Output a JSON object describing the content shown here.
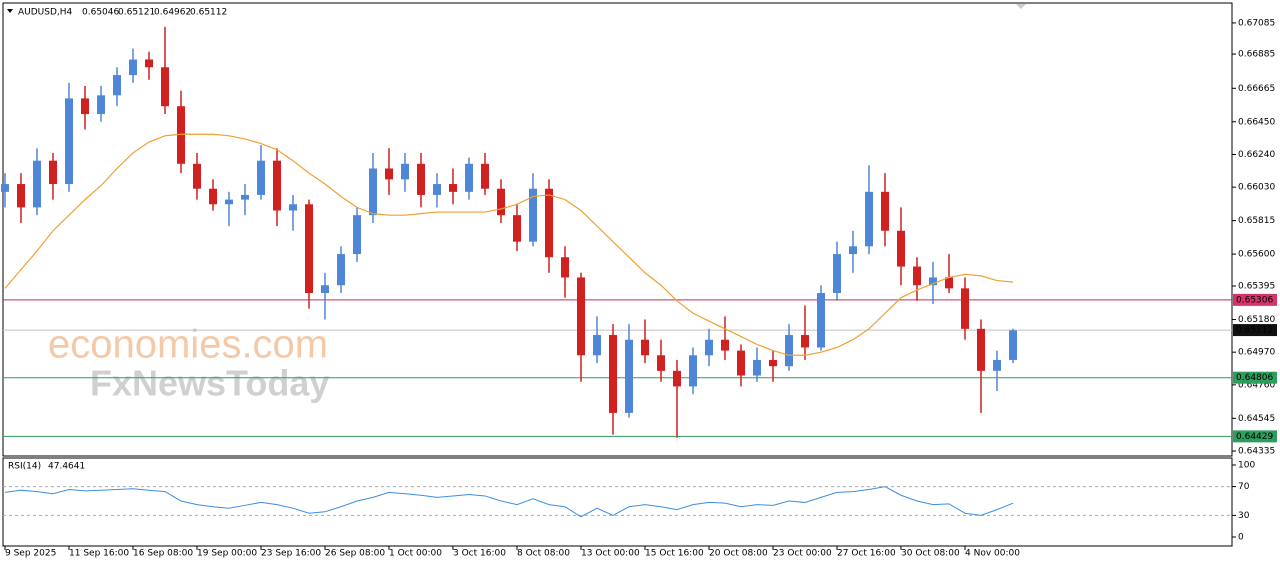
{
  "chart_data": [
    {
      "type": "candlestick",
      "title": "AUDUSD,H4",
      "header_values": [
        0.65046,
        0.65121,
        0.64962,
        0.65112
      ],
      "categories": [
        "9 Sep 2025",
        null,
        null,
        null,
        "11 Sep 16:00",
        null,
        null,
        null,
        "16 Sep 08:00",
        null,
        null,
        null,
        "19 Sep 00:00",
        null,
        null,
        null,
        "23 Sep 16:00",
        null,
        null,
        null,
        "26 Sep 08:00",
        null,
        null,
        null,
        "1 Oct 00:00",
        null,
        null,
        null,
        "3 Oct 16:00",
        null,
        null,
        null,
        "8 Oct 08:00",
        null,
        null,
        null,
        "13 Oct 00:00",
        null,
        null,
        null,
        "15 Oct 16:00",
        null,
        null,
        null,
        "20 Oct 08:00",
        null,
        null,
        null,
        "23 Oct 00:00",
        null,
        null,
        null,
        "27 Oct 16:00",
        null,
        null,
        null,
        "30 Oct 08:00",
        null,
        null,
        null,
        "4 Nov 00:00",
        null,
        null,
        null
      ],
      "open": [
        0.66,
        0.6605,
        0.659,
        0.662,
        0.6605,
        0.666,
        0.665,
        0.6662,
        0.6675,
        0.6685,
        0.668,
        0.6655,
        0.6618,
        0.6602,
        0.6592,
        0.6595,
        0.6598,
        0.662,
        0.6588,
        0.6592,
        0.6535,
        0.654,
        0.656,
        0.6585,
        0.6615,
        0.6608,
        0.6618,
        0.6598,
        0.6605,
        0.66,
        0.6618,
        0.6602,
        0.6585,
        0.6568,
        0.6602,
        0.6558,
        0.6545,
        0.6495,
        0.6508,
        0.6458,
        0.6505,
        0.6495,
        0.6485,
        0.6475,
        0.6495,
        0.6505,
        0.6498,
        0.6482,
        0.6492,
        0.6488,
        0.6508,
        0.65,
        0.6535,
        0.656,
        0.6565,
        0.66,
        0.6575,
        0.6552,
        0.654,
        0.6545,
        0.6538,
        0.6512,
        0.6485,
        0.6492
      ],
      "high": [
        0.6612,
        0.6612,
        0.6628,
        0.6625,
        0.667,
        0.6668,
        0.6668,
        0.668,
        0.6692,
        0.669,
        0.6706,
        0.6665,
        0.6625,
        0.6608,
        0.66,
        0.6605,
        0.663,
        0.6628,
        0.6598,
        0.6595,
        0.6548,
        0.6565,
        0.659,
        0.6625,
        0.6628,
        0.6625,
        0.6625,
        0.6612,
        0.6615,
        0.6622,
        0.6625,
        0.6608,
        0.6592,
        0.6612,
        0.6608,
        0.6565,
        0.6548,
        0.652,
        0.6515,
        0.6515,
        0.6518,
        0.6505,
        0.6492,
        0.65,
        0.6512,
        0.652,
        0.6502,
        0.65,
        0.6498,
        0.6515,
        0.6527,
        0.654,
        0.6568,
        0.6575,
        0.6617,
        0.6612,
        0.659,
        0.6558,
        0.6555,
        0.656,
        0.6545,
        0.6518,
        0.6498,
        0.6512
      ],
      "low": [
        0.659,
        0.658,
        0.6585,
        0.6595,
        0.66,
        0.664,
        0.6645,
        0.6655,
        0.667,
        0.6672,
        0.665,
        0.6612,
        0.6595,
        0.6588,
        0.6578,
        0.6585,
        0.6595,
        0.6578,
        0.6575,
        0.6525,
        0.6518,
        0.6535,
        0.6555,
        0.658,
        0.6598,
        0.66,
        0.659,
        0.659,
        0.6592,
        0.6595,
        0.6598,
        0.658,
        0.6562,
        0.6565,
        0.6548,
        0.6532,
        0.6478,
        0.649,
        0.6444,
        0.6455,
        0.649,
        0.6478,
        0.6442,
        0.647,
        0.6488,
        0.6492,
        0.6475,
        0.6478,
        0.6478,
        0.6485,
        0.6492,
        0.6498,
        0.653,
        0.6548,
        0.656,
        0.6565,
        0.654,
        0.653,
        0.6528,
        0.6535,
        0.6505,
        0.6458,
        0.6472,
        0.649
      ],
      "close": [
        0.6605,
        0.659,
        0.662,
        0.6605,
        0.666,
        0.665,
        0.6662,
        0.6675,
        0.6685,
        0.668,
        0.6655,
        0.6618,
        0.6602,
        0.6592,
        0.6595,
        0.6598,
        0.662,
        0.6588,
        0.6592,
        0.6535,
        0.654,
        0.656,
        0.6585,
        0.6615,
        0.6608,
        0.6618,
        0.6598,
        0.6605,
        0.66,
        0.6618,
        0.6602,
        0.6585,
        0.6568,
        0.6602,
        0.6558,
        0.6545,
        0.6495,
        0.6508,
        0.6458,
        0.6505,
        0.6495,
        0.6485,
        0.6475,
        0.6495,
        0.6505,
        0.6498,
        0.6482,
        0.6492,
        0.6488,
        0.6508,
        0.65,
        0.6535,
        0.656,
        0.6565,
        0.66,
        0.6575,
        0.6552,
        0.654,
        0.6545,
        0.6538,
        0.6512,
        0.6485,
        0.6492,
        0.6511
      ],
      "up_color": "#4f86d8",
      "down_color": "#d21f1f",
      "ma": {
        "color": "#f0a030",
        "values": [
          0.6538,
          0.655,
          0.6562,
          0.6575,
          0.6585,
          0.6595,
          0.6604,
          0.6615,
          0.6625,
          0.6632,
          0.6636,
          0.6637,
          0.6637,
          0.6637,
          0.6636,
          0.6634,
          0.6631,
          0.6627,
          0.662,
          0.6612,
          0.6605,
          0.6597,
          0.659,
          0.6586,
          0.6585,
          0.6585,
          0.6586,
          0.6587,
          0.6587,
          0.6587,
          0.6587,
          0.6589,
          0.6592,
          0.6597,
          0.6598,
          0.6595,
          0.6588,
          0.6578,
          0.6568,
          0.6558,
          0.6548,
          0.654,
          0.653,
          0.6522,
          0.6517,
          0.6512,
          0.6507,
          0.6502,
          0.6498,
          0.6495,
          0.6495,
          0.6497,
          0.65,
          0.6505,
          0.6512,
          0.6522,
          0.6532,
          0.6537,
          0.6541,
          0.6545,
          0.6547,
          0.6546,
          0.6543,
          0.6542
        ]
      },
      "levels": [
        {
          "value": 0.65306,
          "color": "#c8285a",
          "tag_color": "#d6336c"
        },
        {
          "value": 0.65112,
          "color": "#c0c0c0",
          "tag_color": "#111111"
        },
        {
          "value": 0.64806,
          "color": "#2e9e5e",
          "tag_color": "#2e9e5e"
        },
        {
          "value": 0.64429,
          "color": "#2e9e5e",
          "tag_color": "#2e9e5e"
        }
      ],
      "ylim": [
        0.64303,
        0.67213
      ],
      "yticks": [
        0.67085,
        0.66885,
        0.66665,
        {
          "value": 0.6645,
          "label": "0.66450"
        },
        {
          "value": 0.6624,
          "label": "0.66240"
        },
        {
          "value": 0.6603,
          "label": "0.66030"
        },
        0.65815,
        {
          "value": 0.656,
          "label": "0.65600"
        },
        0.65395,
        {
          "value": 0.6518,
          "label": "0.65180"
        },
        {
          "value": 0.6497,
          "label": "0.64970"
        },
        {
          "value": 0.6476,
          "label": "0.64760"
        },
        0.64545,
        0.64335
      ],
      "watermark": [
        "economies.com",
        "FxNewsToday"
      ]
    },
    {
      "type": "line",
      "title": "RSI(14)",
      "last_value": 47.4641,
      "series": [
        {
          "color": "#3a8ee6",
          "values": [
            62,
            65,
            63,
            60,
            66,
            64,
            65,
            66,
            67,
            65,
            63,
            50,
            45,
            42,
            40,
            44,
            48,
            45,
            40,
            33,
            35,
            42,
            50,
            55,
            62,
            60,
            58,
            55,
            57,
            59,
            57,
            50,
            45,
            53,
            45,
            42,
            28,
            40,
            30,
            42,
            45,
            42,
            38,
            45,
            48,
            47,
            42,
            45,
            44,
            50,
            48,
            55,
            62,
            63,
            66,
            70,
            58,
            50,
            45,
            46,
            33,
            30,
            38,
            47
          ]
        }
      ],
      "levels": [
        70,
        30
      ],
      "ylim": [
        -12.5,
        109.7
      ],
      "yticks": [
        100,
        70,
        30,
        0
      ]
    }
  ]
}
